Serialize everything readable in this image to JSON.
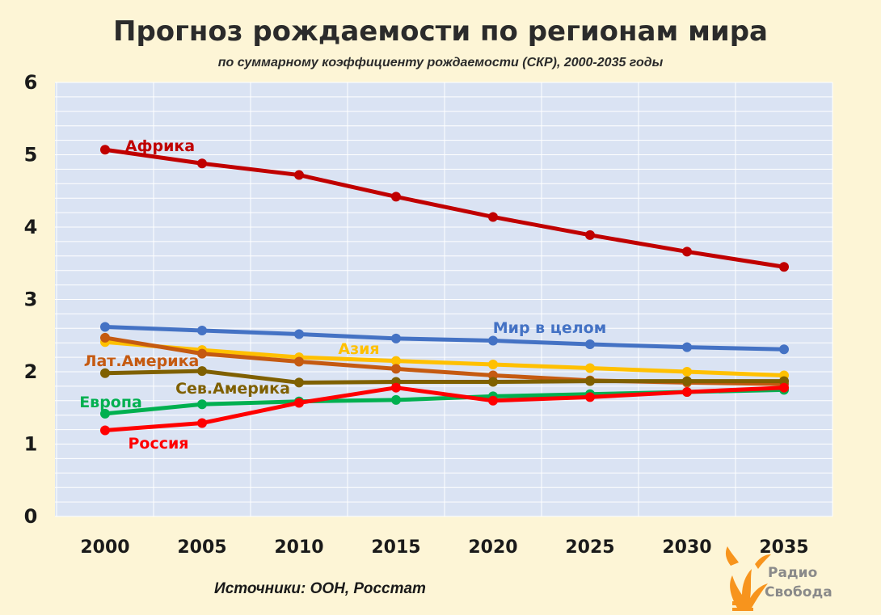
{
  "chart_data": {
    "type": "line",
    "title": "Прогноз рождаемости по регионам мира",
    "subtitle": "по суммарному коэффициенту рождаемости (СКР), 2000-2035 годы",
    "xlabel": "",
    "ylabel": "",
    "x": [
      2000,
      2005,
      2010,
      2015,
      2020,
      2025,
      2030,
      2035
    ],
    "ylim": [
      0,
      6
    ],
    "yticks": [
      0,
      1,
      2,
      3,
      4,
      5,
      6
    ],
    "grid": true,
    "series": [
      {
        "name": "Африка",
        "color": "#c00000",
        "values": [
          5.07,
          4.88,
          4.72,
          4.42,
          4.14,
          3.89,
          3.66,
          3.45
        ]
      },
      {
        "name": "Мир в целом",
        "color": "#4472c4",
        "values": [
          2.62,
          2.57,
          2.52,
          2.46,
          2.43,
          2.38,
          2.34,
          2.31
        ]
      },
      {
        "name": "Азия",
        "color": "#ffc000",
        "values": [
          2.41,
          2.3,
          2.2,
          2.15,
          2.1,
          2.05,
          2.0,
          1.95
        ]
      },
      {
        "name": "Лат.Америка",
        "color": "#c55a11",
        "values": [
          2.47,
          2.25,
          2.14,
          2.04,
          1.95,
          1.88,
          1.85,
          1.83
        ]
      },
      {
        "name": "Сев.Америка",
        "color": "#7f6000",
        "values": [
          1.98,
          2.01,
          1.85,
          1.86,
          1.86,
          1.87,
          1.87,
          1.87
        ]
      },
      {
        "name": "Европа",
        "color": "#00b050",
        "values": [
          1.42,
          1.55,
          1.59,
          1.61,
          1.66,
          1.69,
          1.72,
          1.75
        ]
      },
      {
        "name": "Россия",
        "color": "#ff0000",
        "values": [
          1.19,
          1.29,
          1.57,
          1.78,
          1.6,
          1.65,
          1.72,
          1.78
        ]
      }
    ]
  },
  "source_text": "Источники:  ООН, Росстат",
  "logo": {
    "line1": "Радио",
    "line2": "Свобода",
    "color": "#f7941d"
  },
  "colors": {
    "background": "#fdf5d6",
    "plot_background": "#dae3f3",
    "grid": "#ffffff"
  }
}
